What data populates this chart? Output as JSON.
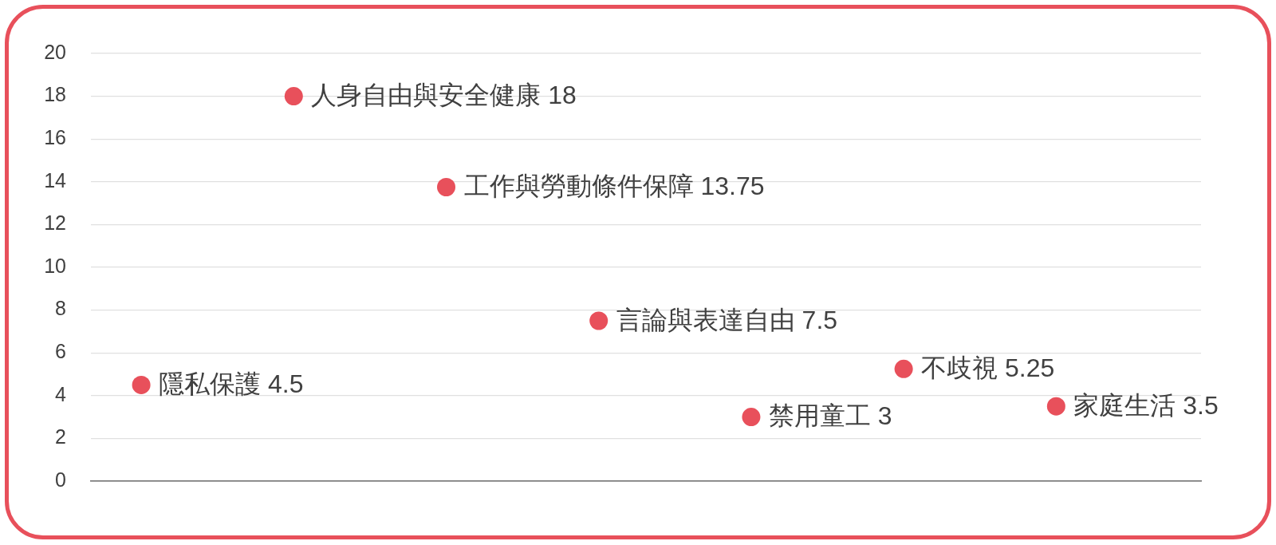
{
  "chart_data": {
    "type": "scatter",
    "categories": [
      null,
      null,
      null,
      null,
      null,
      null,
      null
    ],
    "values": [
      4.5,
      18,
      13.75,
      7.5,
      3,
      5.25,
      3.5
    ],
    "value_labels": [
      "隱私保護 4.5",
      "人身自由與安全健康 18",
      "工作與勞動條件保障 13.75",
      "言論與表達自由 7.5",
      "禁用童工 3",
      "不歧視 5.25",
      "家庭生活 3.5"
    ],
    "color": "#e8505b",
    "ylim": [
      0,
      20
    ],
    "yticks": [
      0,
      2,
      4,
      6,
      8,
      10,
      12,
      14,
      16,
      18,
      20
    ],
    "grid": "y",
    "marker": "circle",
    "tick_labels": "y"
  }
}
